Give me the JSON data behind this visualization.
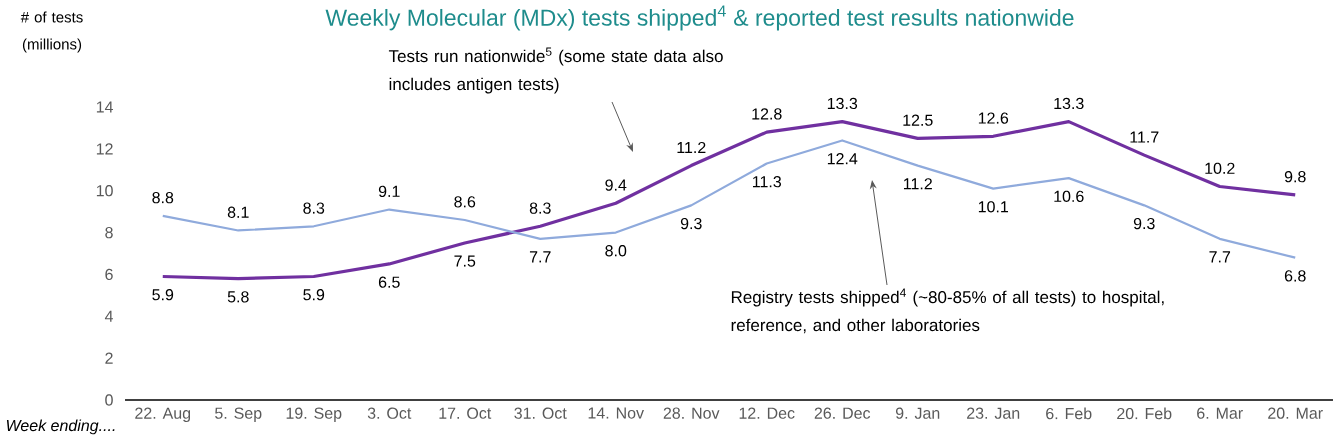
{
  "chart_data": {
    "type": "line",
    "title": "Weekly Molecular (MDx) tests shipped$^{4}$ & reported test results nationwide",
    "xlabel": "Week ending....",
    "ylabel": "# of tests (millions)",
    "categories": [
      "22. Aug",
      "5. Sep",
      "19. Sep",
      "3. Oct",
      "17. Oct",
      "31. Oct",
      "14. Nov",
      "28. Nov",
      "12. Dec",
      "26. Dec",
      "9. Jan",
      "23. Jan",
      "6. Feb",
      "20. Feb",
      "6. Mar",
      "20. Mar"
    ],
    "series": [
      {
        "color": "#7030a0",
        "values": [
          5.9,
          5.8,
          5.9,
          6.5,
          7.5,
          8.3,
          9.4,
          11.2,
          12.8,
          13.3,
          12.5,
          12.6,
          13.3,
          11.7,
          10.2,
          9.8
        ],
        "value_labels": [
          "5.9",
          "5.8",
          "5.9",
          "6.5",
          "7.5",
          "8.3",
          "9.4",
          "11.2",
          "12.8",
          "13.3",
          "12.5",
          "12.6",
          "13.3",
          "11.7",
          "10.2",
          "9.8"
        ]
      },
      {
        "color": "#8faadc",
        "values": [
          8.8,
          8.1,
          8.3,
          9.1,
          8.6,
          7.7,
          8.0,
          9.3,
          11.3,
          12.4,
          11.2,
          10.1,
          10.6,
          9.3,
          7.7,
          6.8
        ],
        "value_labels": [
          "8.8",
          "8.1",
          "8.3",
          "9.1",
          "8.6",
          "7.7",
          "8.0",
          "9.3",
          "11.3",
          "12.4",
          "11.2",
          "10.1",
          "10.6",
          "9.3",
          "7.7",
          "6.8"
        ]
      }
    ],
    "ylim": [
      0,
      14
    ],
    "yticks": [
      0,
      2,
      4,
      6,
      8,
      10,
      12,
      14
    ],
    "annotations": [
      "Tests run nationwide$^{5}$ (some state data also includes antigen tests)",
      "Registry tests shipped$^{4}$ (~80-85% of all tests) to hospital, reference, and other laboratories"
    ]
  }
}
